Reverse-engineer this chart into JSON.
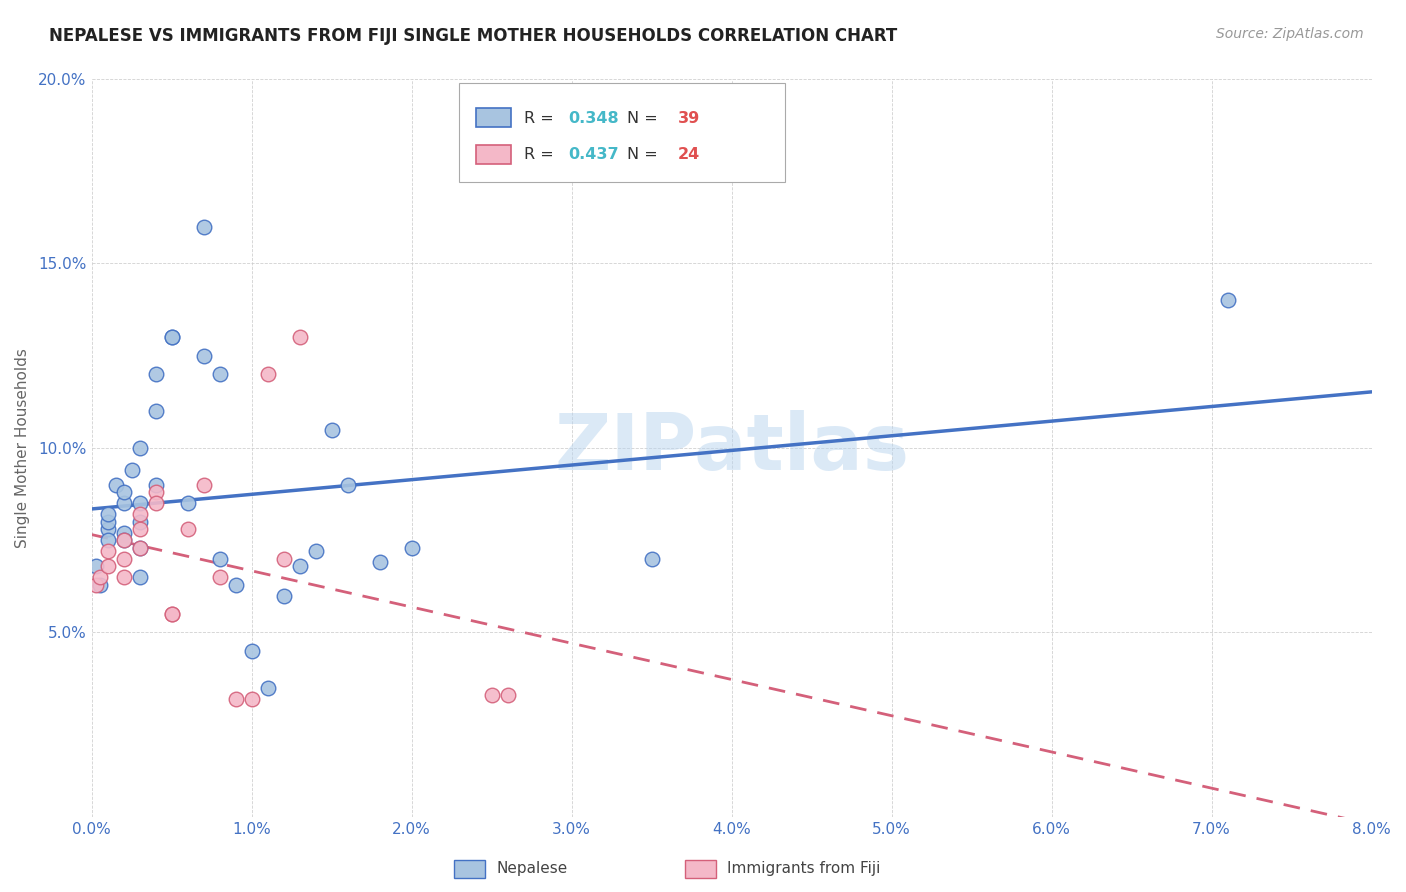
{
  "title": "NEPALESE VS IMMIGRANTS FROM FIJI SINGLE MOTHER HOUSEHOLDS CORRELATION CHART",
  "source": "Source: ZipAtlas.com",
  "ylabel": "Single Mother Households",
  "xlim": [
    0.0,
    0.08
  ],
  "ylim": [
    0.0,
    0.2
  ],
  "xticks": [
    0.0,
    0.01,
    0.02,
    0.03,
    0.04,
    0.05,
    0.06,
    0.07,
    0.08
  ],
  "yticks": [
    0.0,
    0.05,
    0.1,
    0.15,
    0.2
  ],
  "xtick_labels": [
    "0.0%",
    "1.0%",
    "2.0%",
    "3.0%",
    "4.0%",
    "5.0%",
    "6.0%",
    "7.0%",
    "8.0%"
  ],
  "ytick_labels": [
    "",
    "5.0%",
    "10.0%",
    "15.0%",
    "20.0%"
  ],
  "watermark": "ZIPatlas",
  "nepalese_color": "#a8c4e0",
  "nepalese_edge": "#4472c4",
  "fiji_color": "#f4b8c8",
  "fiji_edge": "#d4607a",
  "neo_line_color": "#4472c4",
  "fiji_line_color": "#d4607a",
  "legend_R1": "0.348",
  "legend_N1": "39",
  "legend_R2": "0.437",
  "legend_N2": "24",
  "legend_label1": "Nepalese",
  "legend_label2": "Immigrants from Fiji",
  "R_color": "#45b8c8",
  "N_color": "#e05050",
  "nepalese_x": [
    0.0003,
    0.0005,
    0.001,
    0.001,
    0.001,
    0.001,
    0.0015,
    0.002,
    0.002,
    0.002,
    0.002,
    0.0025,
    0.003,
    0.003,
    0.003,
    0.003,
    0.003,
    0.004,
    0.004,
    0.004,
    0.005,
    0.005,
    0.006,
    0.007,
    0.007,
    0.008,
    0.008,
    0.009,
    0.01,
    0.011,
    0.012,
    0.013,
    0.014,
    0.015,
    0.016,
    0.018,
    0.02,
    0.071,
    0.035
  ],
  "nepalese_y": [
    0.068,
    0.063,
    0.078,
    0.08,
    0.082,
    0.075,
    0.09,
    0.085,
    0.088,
    0.077,
    0.075,
    0.094,
    0.1,
    0.085,
    0.065,
    0.08,
    0.073,
    0.12,
    0.11,
    0.09,
    0.13,
    0.13,
    0.085,
    0.125,
    0.16,
    0.12,
    0.07,
    0.063,
    0.045,
    0.035,
    0.06,
    0.068,
    0.072,
    0.105,
    0.09,
    0.069,
    0.073,
    0.14,
    0.07
  ],
  "fiji_x": [
    0.0003,
    0.0005,
    0.001,
    0.001,
    0.002,
    0.002,
    0.002,
    0.003,
    0.003,
    0.003,
    0.004,
    0.004,
    0.005,
    0.005,
    0.006,
    0.007,
    0.008,
    0.009,
    0.01,
    0.011,
    0.012,
    0.013,
    0.025,
    0.026
  ],
  "fiji_y": [
    0.063,
    0.065,
    0.068,
    0.072,
    0.07,
    0.075,
    0.065,
    0.078,
    0.082,
    0.073,
    0.088,
    0.085,
    0.055,
    0.055,
    0.078,
    0.09,
    0.065,
    0.032,
    0.032,
    0.12,
    0.07,
    0.13,
    0.033,
    0.033
  ]
}
